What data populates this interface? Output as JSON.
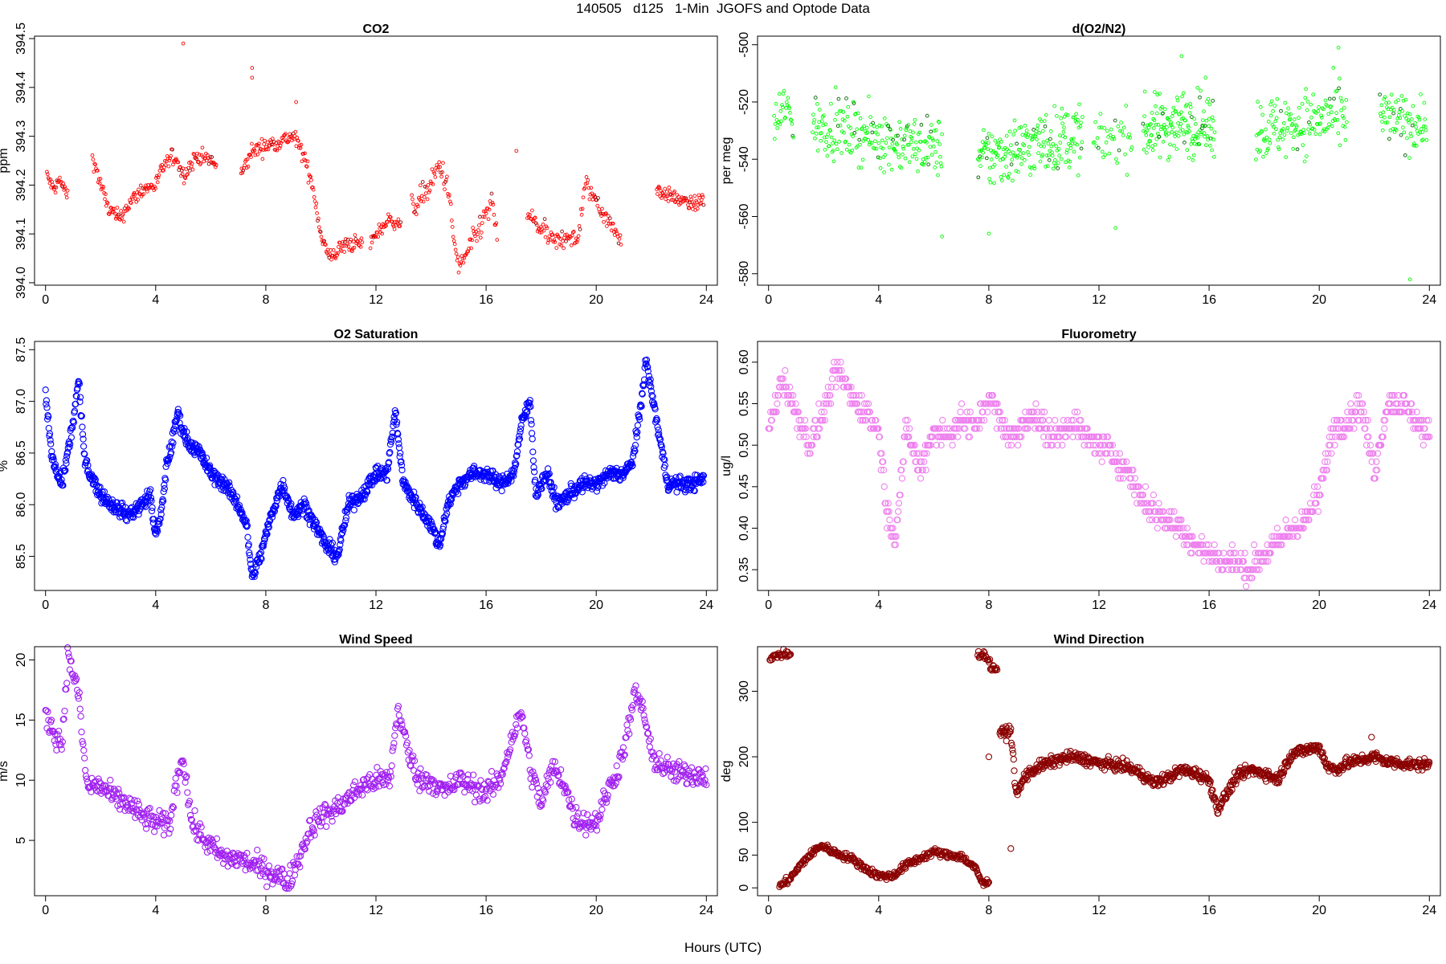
{
  "title": "140505   d125   1-Min  JGOFS and Optode Data",
  "xlabel": "Hours (UTC)",
  "chart_data": [
    {
      "type": "scatter",
      "title": "CO2",
      "ylabel": "ppm",
      "color": "#ff0000",
      "dark_color": "#8b0000",
      "xlim": [
        -0.4,
        24.4
      ],
      "ylim": [
        393.995,
        394.505
      ],
      "xticks": [
        "0",
        "4",
        "8",
        "12",
        "16",
        "20",
        "24"
      ],
      "yticks": [
        "394.0",
        "394.1",
        "394.2",
        "394.3",
        "394.4",
        "394.5"
      ],
      "segments": [
        {
          "x": [
            0.05,
            0.3,
            0.5,
            0.8
          ],
          "y": [
            394.22,
            394.19,
            394.21,
            394.18
          ],
          "n": 30,
          "noise": 0.01
        },
        {
          "x": [
            1.7,
            2.0,
            2.3,
            2.7,
            3.0,
            3.5,
            4.0,
            4.3,
            4.7,
            5.0,
            5.5,
            6.0,
            6.2
          ],
          "y": [
            394.26,
            394.2,
            394.15,
            394.13,
            394.16,
            394.19,
            394.2,
            394.24,
            394.26,
            394.22,
            394.26,
            394.25,
            394.24
          ],
          "n": 170,
          "noise": 0.012
        },
        {
          "x": [
            7.1,
            7.5,
            8.0,
            8.5,
            9.0,
            9.3,
            9.7,
            10.0,
            10.3,
            10.7,
            11.0,
            11.5
          ],
          "y": [
            394.22,
            394.27,
            394.28,
            394.29,
            394.3,
            394.27,
            394.2,
            394.1,
            394.05,
            394.07,
            394.08,
            394.08
          ],
          "n": 170,
          "noise": 0.012
        },
        {
          "x": [
            11.8,
            12.0,
            12.5,
            12.9
          ],
          "y": [
            394.08,
            394.1,
            394.13,
            394.12
          ],
          "n": 40,
          "noise": 0.01
        },
        {
          "x": [
            13.3,
            13.7,
            14.0,
            14.3,
            14.6,
            14.8,
            15.0,
            15.3,
            15.6,
            15.9,
            16.2,
            16.4
          ],
          "y": [
            394.15,
            394.18,
            394.2,
            394.24,
            394.2,
            394.1,
            394.03,
            394.06,
            394.09,
            394.13,
            394.16,
            394.1
          ],
          "n": 110,
          "noise": 0.018
        },
        {
          "x": [
            17.5,
            18.0,
            18.5,
            19.0,
            19.3,
            19.6,
            20.0,
            20.5,
            20.9
          ],
          "y": [
            394.14,
            394.11,
            394.08,
            394.1,
            394.08,
            394.2,
            394.17,
            394.12,
            394.09
          ],
          "n": 120,
          "noise": 0.015
        },
        {
          "x": [
            22.2,
            22.6,
            23.0,
            23.5,
            23.9
          ],
          "y": [
            394.19,
            394.18,
            394.17,
            394.16,
            394.17
          ],
          "n": 70,
          "noise": 0.01
        }
      ],
      "outliers": [
        [
          5.0,
          394.49
        ],
        [
          7.5,
          394.44
        ],
        [
          7.5,
          394.42
        ],
        [
          17.1,
          394.27
        ],
        [
          9.1,
          394.37
        ]
      ]
    },
    {
      "type": "scatter",
      "title": "d(O2/N2)",
      "ylabel": "per meg",
      "color": "#00ff00",
      "dark_color": "#006400",
      "xlim": [
        -0.4,
        24.4
      ],
      "ylim": [
        -584,
        -497
      ],
      "xticks": [
        "0",
        "4",
        "8",
        "12",
        "16",
        "20",
        "24"
      ],
      "yticks": [
        "-500",
        "-520",
        "-540",
        "-560",
        "-580"
      ],
      "segments": [
        {
          "x": [
            0.2,
            0.6,
            0.9
          ],
          "y": [
            -528,
            -522,
            -526
          ],
          "n": 30,
          "noise": 7
        },
        {
          "x": [
            1.6,
            3.0,
            4.5,
            6.3
          ],
          "y": [
            -528,
            -530,
            -534,
            -536
          ],
          "n": 220,
          "noise": 7
        },
        {
          "x": [
            7.6,
            8.5,
            10.0,
            11.4
          ],
          "y": [
            -540,
            -538,
            -534,
            -532
          ],
          "n": 200,
          "noise": 8
        },
        {
          "x": [
            11.8,
            12.5,
            13.2
          ],
          "y": [
            -535,
            -532,
            -532
          ],
          "n": 40,
          "noise": 7
        },
        {
          "x": [
            13.6,
            15.0,
            16.2
          ],
          "y": [
            -530,
            -527,
            -528
          ],
          "n": 160,
          "noise": 8
        },
        {
          "x": [
            17.7,
            19.0,
            20.5,
            21.0
          ],
          "y": [
            -530,
            -528,
            -525,
            -526
          ],
          "n": 150,
          "noise": 8
        },
        {
          "x": [
            22.2,
            23.0,
            23.9
          ],
          "y": [
            -525,
            -527,
            -528
          ],
          "n": 80,
          "noise": 7
        }
      ],
      "outliers": [
        [
          23.3,
          -582
        ],
        [
          6.3,
          -567
        ],
        [
          8.0,
          -566
        ],
        [
          12.6,
          -564
        ],
        [
          20.7,
          -501
        ],
        [
          15.0,
          -504
        ]
      ]
    },
    {
      "type": "scatter",
      "title": "O2 Saturation",
      "ylabel": "%",
      "color": "#0000ff",
      "xlim": [
        -0.4,
        24.4
      ],
      "ylim": [
        85.17,
        87.58
      ],
      "xticks": [
        "0",
        "4",
        "8",
        "12",
        "16",
        "20",
        "24"
      ],
      "yticks": [
        "85.5",
        "86.0",
        "86.5",
        "87.0",
        "87.5"
      ],
      "segments": [
        {
          "x": [
            0.0,
            0.2,
            0.4,
            0.6,
            0.8,
            1.0,
            1.2,
            1.4,
            1.6,
            2.0,
            2.4,
            3.0,
            3.5,
            3.8,
            4.0,
            4.2,
            4.4,
            4.6,
            4.8,
            5.0,
            5.2,
            5.6,
            6.0,
            6.5,
            7.0,
            7.3,
            7.5,
            7.8,
            8.2,
            8.6,
            9.0,
            9.4,
            9.8,
            10.2,
            10.6,
            11.0,
            11.5,
            12.0,
            12.4,
            12.7,
            13.0,
            13.5,
            14.0,
            14.3,
            14.6,
            15.0,
            15.5,
            16.0,
            16.5,
            17.0,
            17.3,
            17.6,
            17.8,
            18.2,
            18.6,
            19.0,
            19.5,
            20.0,
            20.5,
            21.0,
            21.3,
            21.6,
            21.8,
            22.2,
            22.6,
            23.0,
            23.5,
            23.9
          ],
          "y": [
            87.1,
            86.5,
            86.3,
            86.2,
            86.5,
            86.8,
            87.2,
            86.5,
            86.3,
            86.1,
            86.0,
            85.9,
            86.0,
            86.1,
            85.7,
            85.9,
            86.4,
            86.6,
            86.9,
            86.7,
            86.6,
            86.5,
            86.3,
            86.2,
            86.0,
            85.8,
            85.3,
            85.5,
            85.9,
            86.2,
            85.9,
            86.0,
            85.8,
            85.6,
            85.5,
            86.0,
            86.1,
            86.3,
            86.3,
            86.9,
            86.2,
            86.0,
            85.8,
            85.6,
            86.0,
            86.2,
            86.3,
            86.3,
            86.2,
            86.3,
            86.8,
            87.0,
            86.1,
            86.3,
            86.0,
            86.1,
            86.2,
            86.2,
            86.3,
            86.3,
            86.4,
            86.9,
            87.4,
            86.8,
            86.2,
            86.2,
            86.2,
            86.25
          ],
          "n": 1400,
          "noise": 0.05
        }
      ],
      "outliers": []
    },
    {
      "type": "scatter",
      "title": "Fluorometry",
      "ylabel": "ug/l",
      "color": "#ee82ee",
      "xlim": [
        -0.4,
        24.4
      ],
      "ylim": [
        0.325,
        0.625
      ],
      "xticks": [
        "0",
        "4",
        "8",
        "12",
        "16",
        "20",
        "24"
      ],
      "yticks": [
        "0.35",
        "0.40",
        "0.45",
        "0.50",
        "0.55",
        "0.60"
      ],
      "segments": [
        {
          "x": [
            0.0,
            0.5,
            1.0,
            1.5,
            2.0,
            2.5,
            3.0,
            3.5,
            4.0,
            4.3,
            4.6,
            5.0,
            5.5,
            6.0,
            6.5,
            7.0,
            7.5,
            8.0,
            8.5,
            9.0,
            9.5,
            10.0,
            10.5,
            11.0,
            11.5,
            12.0,
            12.5,
            13.0,
            13.5,
            14.0,
            14.5,
            15.0,
            15.5,
            16.0,
            16.5,
            17.0,
            17.5,
            18.0,
            18.5,
            19.0,
            19.5,
            20.0,
            20.5,
            21.0,
            21.5,
            22.0,
            22.5,
            23.0,
            23.5,
            24.0
          ],
          "y": [
            0.52,
            0.58,
            0.54,
            0.5,
            0.54,
            0.59,
            0.56,
            0.54,
            0.52,
            0.42,
            0.39,
            0.52,
            0.47,
            0.52,
            0.51,
            0.53,
            0.52,
            0.56,
            0.52,
            0.51,
            0.54,
            0.52,
            0.51,
            0.53,
            0.51,
            0.5,
            0.49,
            0.47,
            0.44,
            0.42,
            0.41,
            0.4,
            0.38,
            0.37,
            0.36,
            0.36,
            0.35,
            0.37,
            0.38,
            0.4,
            0.41,
            0.44,
            0.52,
            0.53,
            0.55,
            0.47,
            0.55,
            0.55,
            0.53,
            0.51
          ],
          "n": 1000,
          "noise": 0.012,
          "quant": 0.01
        }
      ],
      "outliers": []
    },
    {
      "type": "scatter",
      "title": "Wind Speed",
      "ylabel": "m/s",
      "color": "#a020f0",
      "xlim": [
        -0.4,
        24.4
      ],
      "ylim": [
        0.4,
        21.1
      ],
      "xticks": [
        "0",
        "4",
        "8",
        "12",
        "16",
        "20",
        "24"
      ],
      "yticks": [
        "5",
        "10",
        "15",
        "20"
      ],
      "segments": [
        {
          "x": [
            0.0,
            0.3,
            0.6,
            0.8,
            1.0,
            1.2,
            1.5,
            2.0,
            2.5,
            3.0,
            3.5,
            4.0,
            4.5,
            4.8,
            5.0,
            5.3,
            5.6,
            6.0,
            6.5,
            7.0,
            7.5,
            8.0,
            8.5,
            8.8,
            9.2,
            9.6,
            10.0,
            10.5,
            11.0,
            11.5,
            12.0,
            12.5,
            12.8,
            13.2,
            13.6,
            14.0,
            14.5,
            15.0,
            15.5,
            16.0,
            16.5,
            17.0,
            17.3,
            17.6,
            18.0,
            18.4,
            18.8,
            19.2,
            19.6,
            20.0,
            20.4,
            20.8,
            21.1,
            21.4,
            21.7,
            22.0,
            22.5,
            23.0,
            23.5,
            24.0
          ],
          "y": [
            15.5,
            14,
            13,
            20.2,
            19,
            17,
            9.5,
            9.5,
            8.5,
            8,
            7,
            6.5,
            6.2,
            10.5,
            12,
            6.5,
            5.5,
            4.5,
            3.5,
            3.5,
            3,
            2.5,
            2,
            1.5,
            3.5,
            6,
            7,
            7.5,
            8.5,
            9.5,
            10,
            10,
            16,
            12,
            10,
            10,
            9,
            10,
            9.5,
            9,
            10,
            14,
            15.5,
            11,
            8,
            11,
            10,
            7,
            6.5,
            6.5,
            9,
            11,
            13.5,
            17.2,
            16,
            12,
            11,
            10.5,
            10.5,
            10.5
          ],
          "n": 900,
          "noise": 0.7
        }
      ],
      "outliers": []
    },
    {
      "type": "scatter",
      "title": "Wind Direction",
      "ylabel": "deg",
      "color": "#8b0000",
      "xlim": [
        -0.4,
        24.4
      ],
      "ylim": [
        -12,
        368
      ],
      "xticks": [
        "0",
        "4",
        "8",
        "12",
        "16",
        "20",
        "24"
      ],
      "yticks": [
        "0",
        "50",
        "100",
        "200",
        "300"
      ],
      "segments": [
        {
          "x": [
            0.05,
            0.3,
            0.6,
            0.8
          ],
          "y": [
            348,
            355,
            357,
            356
          ],
          "n": 30,
          "noise": 4
        },
        {
          "x": [
            0.4,
            0.8,
            1.3,
            1.9,
            2.5,
            3.0,
            3.5,
            4.0,
            4.5,
            5.0,
            5.5,
            6.0,
            6.5,
            7.0,
            7.5,
            7.8,
            8.0
          ],
          "y": [
            2,
            15,
            42,
            65,
            52,
            45,
            30,
            18,
            18,
            35,
            45,
            55,
            50,
            48,
            30,
            5,
            10
          ],
          "n": 320,
          "noise": 4
        },
        {
          "x": [
            7.6,
            7.9,
            8.1,
            8.3
          ],
          "y": [
            357,
            355,
            335,
            335
          ],
          "n": 30,
          "noise": 4
        },
        {
          "x": [
            8.4,
            8.6,
            8.8,
            9.0,
            9.3,
            9.8,
            10.5,
            11.0,
            11.5,
            12.0,
            12.5,
            13.0,
            13.5,
            14.0,
            14.5,
            15.0,
            15.5,
            16.0,
            16.3,
            16.6,
            17.0,
            17.5,
            18.0,
            18.5,
            19.0,
            19.5,
            20.0,
            20.3,
            20.6,
            21.0,
            21.5,
            22.0,
            22.5,
            23.0,
            23.5,
            24.0
          ],
          "y": [
            237,
            236,
            240,
            140,
            170,
            185,
            195,
            200,
            196,
            190,
            188,
            185,
            175,
            160,
            168,
            180,
            175,
            165,
            120,
            140,
            170,
            180,
            175,
            165,
            205,
            210,
            215,
            185,
            180,
            190,
            195,
            200,
            192,
            190,
            188,
            188
          ],
          "n": 780,
          "noise": 6
        }
      ],
      "outliers": [
        [
          8.8,
          60
        ],
        [
          8.0,
          200
        ],
        [
          21.9,
          230
        ]
      ]
    }
  ]
}
